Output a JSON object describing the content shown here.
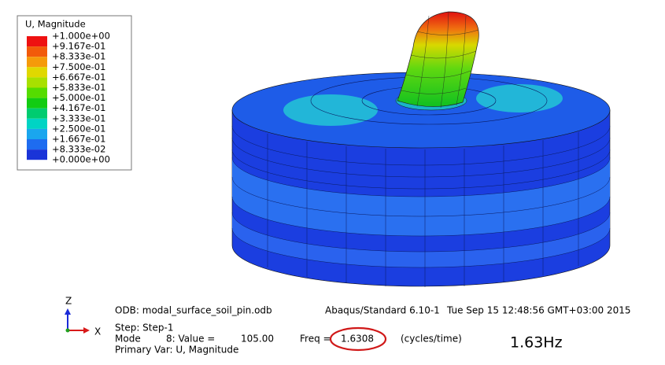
{
  "legend": {
    "title": "U, Magnitude",
    "labels": [
      "+1.000e+00",
      "+9.167e-01",
      "+8.333e-01",
      "+7.500e-01",
      "+6.667e-01",
      "+5.833e-01",
      "+5.000e-01",
      "+4.167e-01",
      "+3.333e-01",
      "+2.500e-01",
      "+1.667e-01",
      "+8.333e-02",
      "+0.000e+00"
    ],
    "colors": [
      "#ee1111",
      "#f25a0a",
      "#f59a0a",
      "#e0d800",
      "#a8e000",
      "#55dc00",
      "#12cc12",
      "#00cc70",
      "#00d4c4",
      "#1aa6ee",
      "#1e6cf0",
      "#1a34d8"
    ]
  },
  "triad": {
    "z": "Z",
    "x": "X"
  },
  "info": {
    "odb": "ODB: modal_surface_soil_pin.odb",
    "solver": "Abaqus/Standard 6.10-1",
    "date": "Tue Sep 15 12:48:56 GMT+03:00 2015",
    "step": "Step: Step-1",
    "mode": "Mode",
    "mode_value": "8: Value =",
    "value": "105.00",
    "freq_label": "Freq =",
    "freq": "1.6308",
    "freq_unit": "(cycles/time)",
    "primary_var": "Primary Var: U, Magnitude"
  },
  "annotation": "1.63Hz"
}
